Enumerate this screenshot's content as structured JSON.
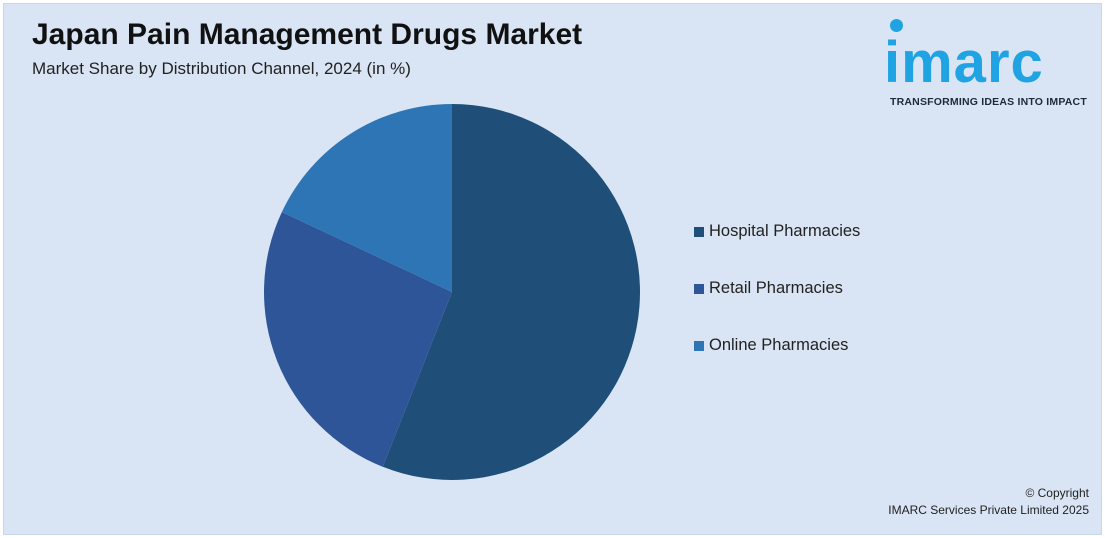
{
  "title": "Japan Pain Management Drugs Market",
  "subtitle": "Market Share by Distribution Channel, 2024 (in %)",
  "logo": {
    "word": "imarc",
    "tagline": "TRANSFORMING IDEAS INTO IMPACT",
    "color": "#1fa3e3"
  },
  "chart_data": {
    "type": "pie",
    "title": "Japan Pain Management Drugs Market",
    "subtitle": "Market Share by Distribution Channel, 2024 (in %)",
    "legend_position": "right",
    "slices": [
      {
        "label": "Hospital Pharmacies",
        "value": 56,
        "color": "#1f4e79"
      },
      {
        "label": "Retail Pharmacies",
        "value": 26,
        "color": "#2e5597"
      },
      {
        "label": "Online Pharmacies",
        "value": 18,
        "color": "#2e75b6"
      }
    ]
  },
  "copyright": {
    "line1": "© Copyright",
    "line2": "IMARC Services Private Limited 2025"
  }
}
